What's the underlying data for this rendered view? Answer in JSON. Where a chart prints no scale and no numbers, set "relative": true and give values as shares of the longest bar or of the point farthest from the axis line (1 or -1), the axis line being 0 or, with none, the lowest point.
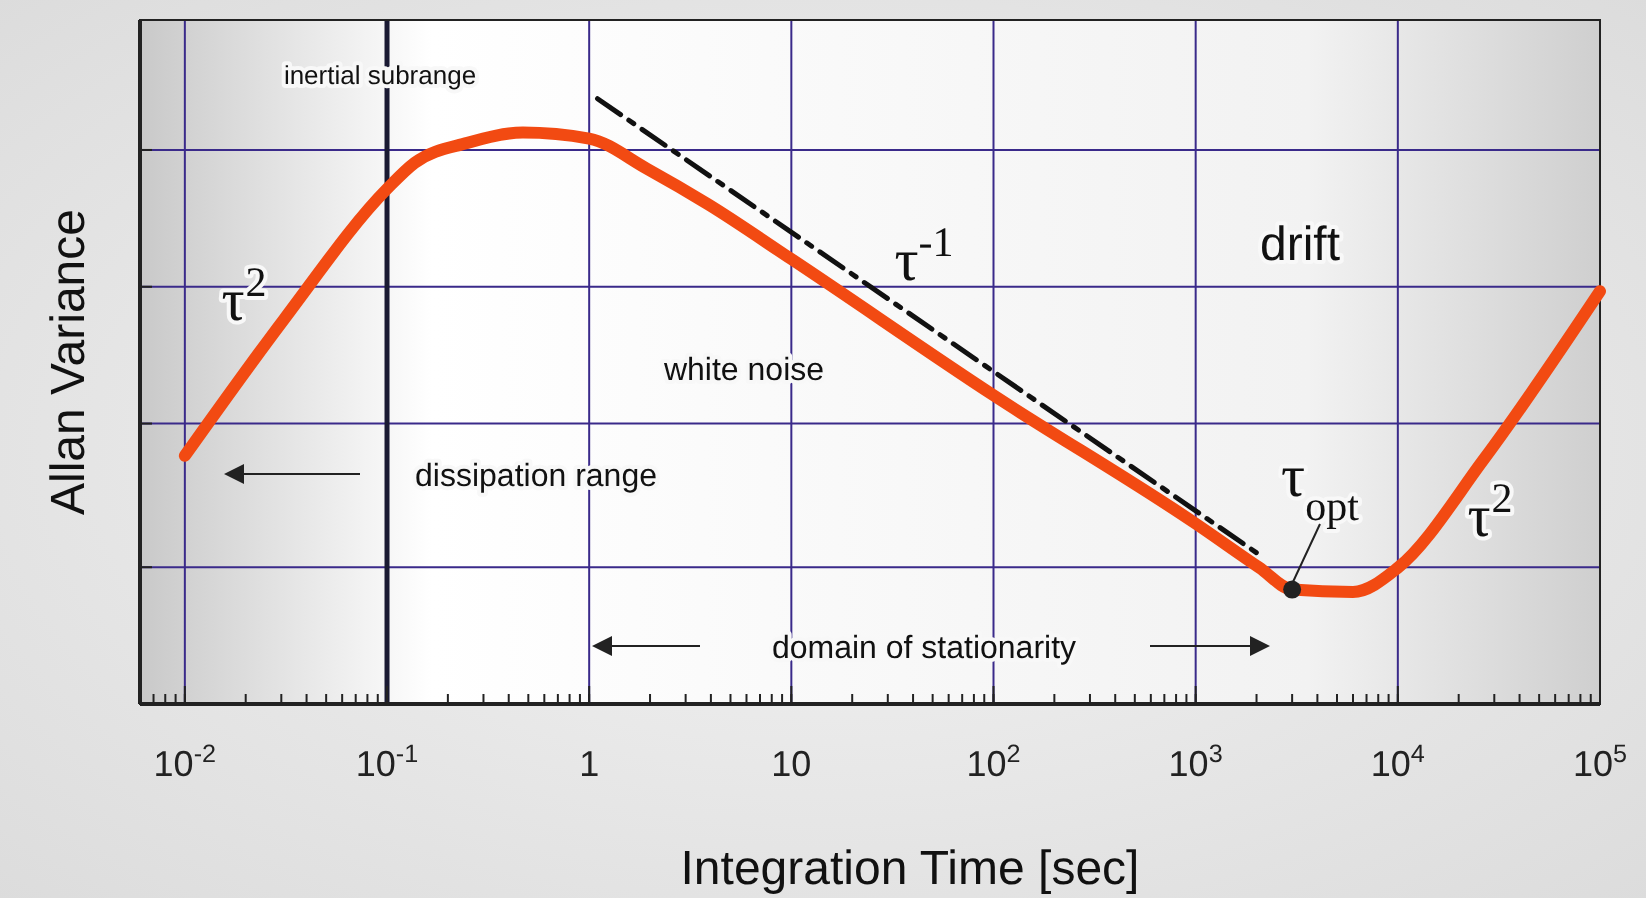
{
  "chart_data": {
    "type": "line",
    "xlabel": "Integration Time [sec]",
    "ylabel": "Allan Variance",
    "relative": true,
    "log": "x",
    "grid": true,
    "xlim": [
      0.006,
      100000
    ],
    "xticks": [
      {
        "value": 0.01,
        "label": "10$^{-2}$"
      },
      {
        "value": 0.1,
        "label": "10$^{-1}$"
      },
      1,
      10,
      {
        "value": 100,
        "label": "10$^{2}$"
      },
      {
        "value": 1000,
        "label": "10$^{3}$"
      },
      {
        "value": 10000,
        "label": "10$^{4}$"
      },
      {
        "value": 100000,
        "label": "10$^{5}$"
      }
    ],
    "series": [
      {
        "color": "#f24a12",
        "line_style": "solid",
        "marker": "none",
        "x": [
          0.01,
          0.031,
          0.1,
          0.137,
          0.25,
          0.47,
          1,
          1.94,
          3.9,
          10,
          100,
          1000,
          2070,
          3000,
          6000,
          10000,
          26600,
          100000
        ],
        "values": [
          0.41,
          0.636,
          0.851,
          0.894,
          0.927,
          0.944,
          0.934,
          0.884,
          0.825,
          0.735,
          0.51,
          0.298,
          0.225,
          0.189,
          0.185,
          0.225,
          0.404,
          0.682
        ]
      },
      {
        "color": "#111111",
        "line_style": "dashed",
        "marker": "none",
        "x": [
          1.1,
          2100
        ],
        "values": [
          1,
          0.245
        ]
      },
      {
        "type": "scatter",
        "color": "#222222",
        "marker": "circle",
        "x": [
          3000
        ],
        "values": [
          0.189
        ]
      }
    ],
    "ref_lines": [
      {
        "axis": "x",
        "value": 0.1,
        "color": "#1a1a33"
      }
    ],
    "annotations": [
      "inertial subrange",
      "τ$^{2}$",
      "τ$^{-1}$",
      "drift",
      "white noise",
      "dissipation range",
      "τ$_{opt}$",
      "domain of stationarity",
      "τ$^{2}$"
    ]
  }
}
